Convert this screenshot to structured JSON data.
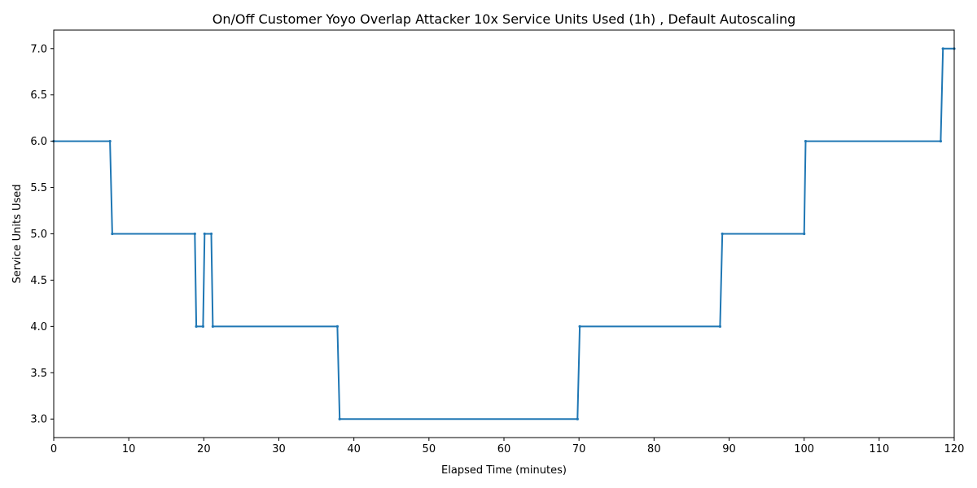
{
  "chart_data": {
    "type": "line",
    "title": "On/Off Customer Yoyo Overlap Attacker 10x Service Units Used (1h) , Default Autoscaling",
    "xlabel": "Elapsed Time (minutes)",
    "ylabel": "Service Units Used",
    "xlim": [
      0,
      120
    ],
    "ylim": [
      2.8,
      7.2
    ],
    "xticks": [
      0,
      10,
      20,
      30,
      40,
      50,
      60,
      70,
      80,
      90,
      100,
      110,
      120
    ],
    "yticks": [
      3.0,
      3.5,
      4.0,
      4.5,
      5.0,
      5.5,
      6.0,
      6.5,
      7.0
    ],
    "xtick_labels": [
      "0",
      "10",
      "20",
      "30",
      "40",
      "50",
      "60",
      "70",
      "80",
      "90",
      "100",
      "110",
      "120"
    ],
    "ytick_labels": [
      "3.0",
      "3.5",
      "4.0",
      "4.5",
      "5.0",
      "5.5",
      "6.0",
      "6.5",
      "7.0"
    ],
    "grid": false,
    "series": [
      {
        "color": "#1f77b4",
        "x": [
          0,
          7.5,
          7.8,
          18.8,
          19.0,
          19.9,
          20.1,
          21.0,
          21.2,
          37.8,
          38.1,
          69.8,
          70.1,
          88.8,
          89.1,
          100.0,
          100.2,
          118.2,
          118.5,
          120
        ],
        "y": [
          6,
          6,
          5,
          5,
          4,
          4,
          5,
          5,
          4,
          4,
          3,
          3,
          4,
          4,
          5,
          5,
          6,
          6,
          7,
          7
        ]
      }
    ]
  }
}
